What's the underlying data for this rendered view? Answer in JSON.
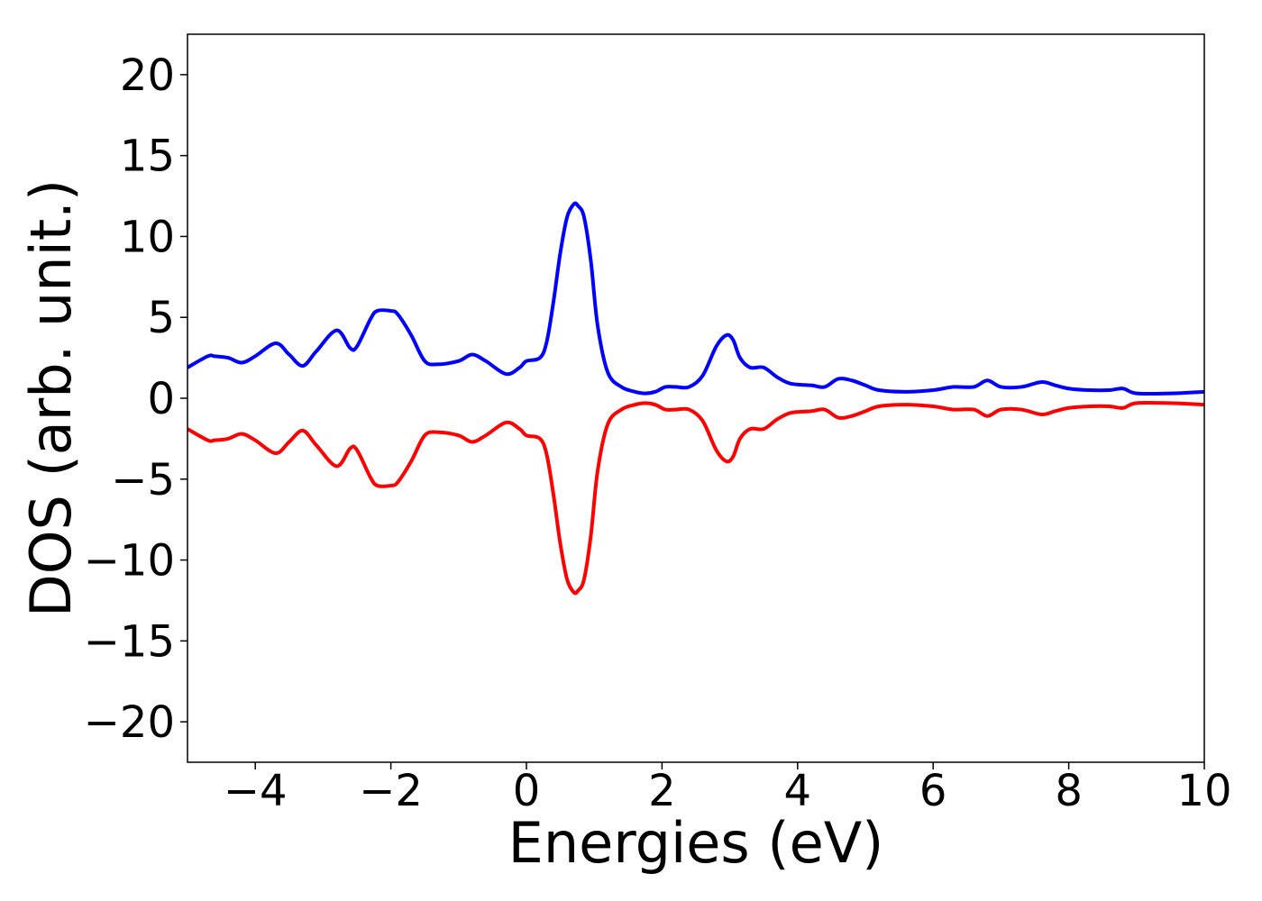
{
  "chart_data": {
    "type": "line",
    "title": "",
    "xlabel": "Energies (eV)",
    "ylabel": "DOS (arb. unit.)",
    "xlim": [
      -5,
      10
    ],
    "ylim": [
      -22.5,
      22.5
    ],
    "xticks": [
      -4,
      -2,
      0,
      2,
      4,
      6,
      8,
      10
    ],
    "xtick_labels": [
      "−4",
      "−2",
      "0",
      "2",
      "4",
      "6",
      "8",
      "10"
    ],
    "yticks": [
      20,
      15,
      10,
      5,
      0,
      -5,
      -10,
      -15,
      -20
    ],
    "ytick_labels": [
      "20",
      "15",
      "10",
      "5",
      "0",
      "−5",
      "−10",
      "−15",
      "−20"
    ],
    "grid": false,
    "legend": "none",
    "series": [
      {
        "color": "#0000ff",
        "x": [
          -5.0,
          -4.7,
          -4.6,
          -4.4,
          -4.2,
          -4.0,
          -3.7,
          -3.5,
          -3.3,
          -3.1,
          -2.8,
          -2.6,
          -2.5,
          -2.3,
          -2.2,
          -2.0,
          -1.9,
          -1.7,
          -1.5,
          -1.3,
          -1.0,
          -0.8,
          -0.6,
          -0.3,
          -0.1,
          0.0,
          0.2,
          0.3,
          0.4,
          0.5,
          0.6,
          0.7,
          0.76,
          0.85,
          0.95,
          1.05,
          1.2,
          1.4,
          1.6,
          1.75,
          1.9,
          2.05,
          2.2,
          2.4,
          2.6,
          2.8,
          2.95,
          3.05,
          3.15,
          3.3,
          3.5,
          3.7,
          3.9,
          4.2,
          4.4,
          4.6,
          4.8,
          5.0,
          5.2,
          5.6,
          6.0,
          6.3,
          6.6,
          6.8,
          7.0,
          7.3,
          7.6,
          7.8,
          8.0,
          8.3,
          8.6,
          8.8,
          9.0,
          9.5,
          10.0
        ],
        "values": [
          1.9,
          2.6,
          2.6,
          2.5,
          2.2,
          2.6,
          3.4,
          2.7,
          2.0,
          2.9,
          4.2,
          3.1,
          3.2,
          4.9,
          5.4,
          5.4,
          5.2,
          3.9,
          2.3,
          2.1,
          2.3,
          2.7,
          2.3,
          1.5,
          1.9,
          2.3,
          2.5,
          3.5,
          6.0,
          9.0,
          11.2,
          12.0,
          11.9,
          11.2,
          8.5,
          4.5,
          1.6,
          0.7,
          0.4,
          0.3,
          0.4,
          0.7,
          0.7,
          0.7,
          1.4,
          3.2,
          3.9,
          3.6,
          2.5,
          1.9,
          1.9,
          1.3,
          0.9,
          0.8,
          0.7,
          1.2,
          1.1,
          0.8,
          0.5,
          0.4,
          0.5,
          0.7,
          0.7,
          1.1,
          0.7,
          0.7,
          1.0,
          0.8,
          0.6,
          0.5,
          0.5,
          0.6,
          0.3,
          0.3,
          0.4
        ]
      },
      {
        "color": "#ff0000",
        "x": [
          -5.0,
          -4.7,
          -4.6,
          -4.4,
          -4.2,
          -4.0,
          -3.7,
          -3.5,
          -3.3,
          -3.1,
          -2.8,
          -2.6,
          -2.5,
          -2.3,
          -2.2,
          -2.0,
          -1.9,
          -1.7,
          -1.5,
          -1.3,
          -1.0,
          -0.8,
          -0.6,
          -0.3,
          -0.1,
          0.0,
          0.2,
          0.3,
          0.4,
          0.5,
          0.6,
          0.7,
          0.76,
          0.85,
          0.95,
          1.05,
          1.2,
          1.4,
          1.6,
          1.75,
          1.9,
          2.05,
          2.2,
          2.4,
          2.6,
          2.8,
          2.95,
          3.05,
          3.15,
          3.3,
          3.5,
          3.7,
          3.9,
          4.2,
          4.4,
          4.6,
          4.8,
          5.0,
          5.2,
          5.6,
          6.0,
          6.3,
          6.6,
          6.8,
          7.0,
          7.3,
          7.6,
          7.8,
          8.0,
          8.3,
          8.6,
          8.8,
          9.0,
          9.5,
          10.0
        ],
        "values": [
          -1.9,
          -2.6,
          -2.6,
          -2.5,
          -2.2,
          -2.6,
          -3.4,
          -2.7,
          -2.0,
          -2.9,
          -4.2,
          -3.1,
          -3.2,
          -4.9,
          -5.4,
          -5.4,
          -5.2,
          -3.9,
          -2.3,
          -2.1,
          -2.3,
          -2.7,
          -2.3,
          -1.5,
          -1.9,
          -2.3,
          -2.5,
          -3.5,
          -6.0,
          -9.0,
          -11.2,
          -12.0,
          -11.9,
          -11.2,
          -8.5,
          -4.5,
          -1.6,
          -0.7,
          -0.4,
          -0.3,
          -0.4,
          -0.7,
          -0.7,
          -0.7,
          -1.4,
          -3.2,
          -3.9,
          -3.6,
          -2.5,
          -1.9,
          -1.9,
          -1.3,
          -0.9,
          -0.8,
          -0.7,
          -1.2,
          -1.1,
          -0.8,
          -0.5,
          -0.4,
          -0.5,
          -0.7,
          -0.7,
          -1.1,
          -0.7,
          -0.7,
          -1.0,
          -0.8,
          -0.6,
          -0.5,
          -0.5,
          -0.6,
          -0.3,
          -0.3,
          -0.4
        ]
      }
    ]
  }
}
